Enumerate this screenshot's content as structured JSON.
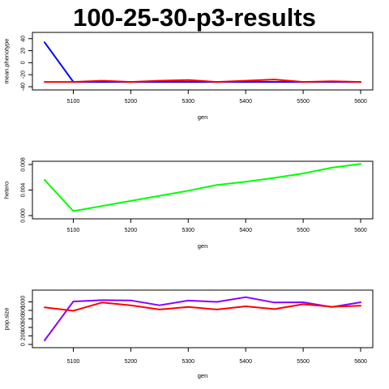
{
  "title": "100-25-30-p3-results",
  "chart_data": [
    {
      "type": "line",
      "xlabel": "gen",
      "ylabel": "mean.phenotype",
      "xlim": [
        5050,
        5600
      ],
      "ylim": [
        -40,
        45
      ],
      "xticks": [
        5100,
        5200,
        5300,
        5400,
        5500,
        5600
      ],
      "yticks": [
        -40,
        -20,
        0,
        20,
        40
      ],
      "x": [
        5050,
        5100,
        5150,
        5200,
        5250,
        5300,
        5350,
        5400,
        5450,
        5500,
        5550,
        5600
      ],
      "series": [
        {
          "color": "#0000ff",
          "values": [
            34,
            -32,
            -32,
            -32,
            -32,
            -32,
            -32,
            -32,
            -32,
            -32,
            -32,
            -32
          ]
        },
        {
          "color": "#ff0000",
          "values": [
            -32,
            -32,
            -30,
            -32,
            -30,
            -29,
            -32,
            -30,
            -28,
            -32,
            -31,
            -32
          ]
        }
      ]
    },
    {
      "type": "line",
      "xlabel": "gen",
      "ylabel": "hetero",
      "xlim": [
        5050,
        5600
      ],
      "ylim": [
        0,
        0.008
      ],
      "xticks": [
        5100,
        5200,
        5300,
        5400,
        5500,
        5600
      ],
      "yticks": [
        "0.000",
        "0.004",
        "0.008"
      ],
      "ytick_values": [
        0,
        0.004,
        0.008
      ],
      "x": [
        5050,
        5100,
        5150,
        5200,
        5250,
        5300,
        5350,
        5400,
        5450,
        5500,
        5550,
        5600
      ],
      "series": [
        {
          "color": "#00ff00",
          "values": [
            0.0056,
            0.0007,
            0.0015,
            0.0023,
            0.0031,
            0.0039,
            0.0048,
            0.0053,
            0.0059,
            0.0066,
            0.0075,
            0.0081
          ]
        }
      ]
    },
    {
      "type": "line",
      "xlabel": "gen",
      "ylabel": "pop.size",
      "xlim": [
        5050,
        5600
      ],
      "ylim": [
        0,
        1200
      ],
      "xticks": [
        5100,
        5200,
        5300,
        5400,
        5500,
        5600
      ],
      "yticks": [
        0,
        200,
        400,
        600,
        800,
        1000
      ],
      "x": [
        5050,
        5100,
        5150,
        5200,
        5250,
        5300,
        5350,
        5400,
        5450,
        5500,
        5550,
        5600
      ],
      "series": [
        {
          "color": "#8800ff",
          "values": [
            95,
            1010,
            1040,
            1035,
            920,
            1030,
            1000,
            1110,
            985,
            990,
            880,
            990
          ]
        },
        {
          "color": "#ff0000",
          "values": [
            870,
            790,
            985,
            920,
            820,
            880,
            820,
            895,
            830,
            945,
            885,
            910
          ]
        }
      ]
    }
  ]
}
